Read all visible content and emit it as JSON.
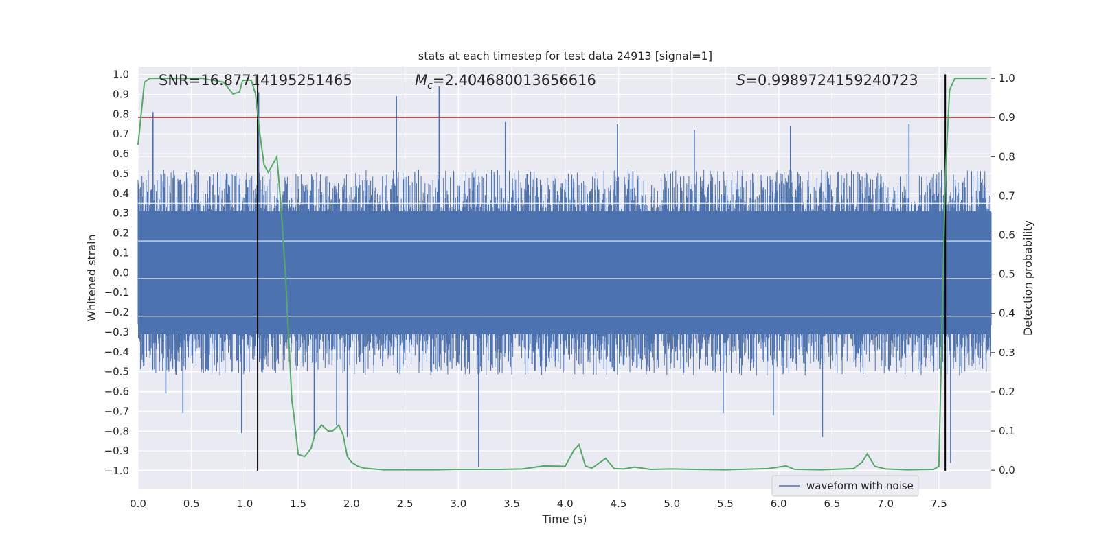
{
  "chart_data": {
    "type": "line",
    "title": "stats at each timestep for test data 24913 [signal=1]",
    "xlabel": "Time (s)",
    "ylabel": "Whitened strain",
    "y2label": "Detection probability",
    "xlim": [
      0.0,
      7.99
    ],
    "ylim": [
      -1.09,
      1.04
    ],
    "y2lim": [
      -0.047,
      1.03
    ],
    "grid": true,
    "x_ticks": [
      "0.0",
      "0.5",
      "1.0",
      "1.5",
      "2.0",
      "2.5",
      "3.0",
      "3.5",
      "4.0",
      "4.5",
      "5.0",
      "5.5",
      "6.0",
      "6.5",
      "7.0",
      "7.5"
    ],
    "y_ticks": [
      "1.0",
      "0.9",
      "0.8",
      "0.7",
      "0.6",
      "0.5",
      "0.4",
      "0.3",
      "0.2",
      "0.1",
      "0.0",
      "-0.1",
      "-0.2",
      "-0.3",
      "-0.4",
      "-0.5",
      "-0.6",
      "-0.7",
      "-0.8",
      "-0.9",
      "-1.0"
    ],
    "y2_ticks": [
      "1.0",
      "0.9",
      "0.8",
      "0.7",
      "0.6",
      "0.5",
      "0.4",
      "0.3",
      "0.2",
      "0.1",
      "0.0"
    ],
    "annotations": {
      "snr": "SNR=16.87714195251465",
      "mc_symbol": "M",
      "mc_subscript": "c",
      "mc_value": "=2.404680013656616",
      "s_symbol": "S",
      "s_value": "=0.9989724159240723"
    },
    "legend": {
      "label": "waveform with noise",
      "position": "lower-right"
    },
    "series": [
      {
        "name": "waveform with noise",
        "color": "#4c72b0",
        "axis": "left",
        "kind": "dense noise",
        "spikes": [
          [
            0.14,
            0.81
          ],
          [
            0.26,
            -0.61
          ],
          [
            0.42,
            -0.71
          ],
          [
            0.97,
            -0.81
          ],
          [
            1.13,
            0.91
          ],
          [
            1.65,
            -0.84
          ],
          [
            1.86,
            -0.77
          ],
          [
            1.96,
            -0.83
          ],
          [
            2.42,
            0.89
          ],
          [
            2.82,
            0.94
          ],
          [
            3.19,
            -0.98
          ],
          [
            3.44,
            0.76
          ],
          [
            4.49,
            0.75
          ],
          [
            5.21,
            0.72
          ],
          [
            5.48,
            -0.71
          ],
          [
            5.95,
            -0.72
          ],
          [
            6.11,
            0.74
          ],
          [
            6.41,
            -0.83
          ],
          [
            7.22,
            0.75
          ],
          [
            7.61,
            -0.96
          ]
        ]
      },
      {
        "name": "",
        "color": "#55a868",
        "axis": "right",
        "x": [
          0.0,
          0.06,
          0.11,
          0.2,
          0.4,
          0.6,
          0.8,
          0.89,
          0.95,
          0.98,
          1.06,
          1.1,
          1.14,
          1.18,
          1.22,
          1.26,
          1.3,
          1.34,
          1.38,
          1.42,
          1.44,
          1.46,
          1.5,
          1.56,
          1.62,
          1.66,
          1.72,
          1.78,
          1.82,
          1.88,
          1.92,
          1.96,
          2.0,
          2.06,
          2.12,
          2.2,
          2.3,
          2.5,
          2.8,
          3.0,
          3.2,
          3.4,
          3.6,
          3.8,
          4.0,
          4.08,
          4.13,
          4.19,
          4.25,
          4.38,
          4.46,
          4.55,
          4.65,
          4.8,
          5.0,
          5.2,
          5.5,
          5.9,
          6.07,
          6.15,
          6.4,
          6.7,
          6.78,
          6.83,
          6.9,
          7.0,
          7.2,
          7.45,
          7.5,
          7.54,
          7.56,
          7.6,
          7.65,
          7.75,
          7.95
        ],
        "values": [
          0.83,
          0.99,
          1.0,
          1.0,
          1.0,
          1.0,
          0.99,
          0.96,
          0.965,
          0.995,
          0.995,
          0.96,
          0.86,
          0.78,
          0.76,
          0.78,
          0.8,
          0.67,
          0.5,
          0.29,
          0.18,
          0.14,
          0.04,
          0.035,
          0.055,
          0.095,
          0.115,
          0.1,
          0.1,
          0.115,
          0.09,
          0.035,
          0.02,
          0.01,
          0.005,
          0.003,
          0.001,
          0.001,
          0.001,
          0.002,
          0.002,
          0.002,
          0.003,
          0.011,
          0.01,
          0.05,
          0.065,
          0.011,
          0.005,
          0.03,
          0.004,
          0.003,
          0.008,
          0.002,
          0.003,
          0.002,
          0.001,
          0.004,
          0.011,
          0.002,
          0.001,
          0.004,
          0.02,
          0.042,
          0.01,
          0.003,
          0.001,
          0.002,
          0.01,
          0.5,
          0.75,
          0.97,
          1.0,
          1.0,
          1.0
        ]
      }
    ],
    "threshold_line": {
      "axis": "right",
      "y": 0.9,
      "color": "#c44e52"
    },
    "vertical_lines": [
      {
        "x": 1.12,
        "y_top": 1.0,
        "y_bottom": -1.0,
        "color": "#000000"
      },
      {
        "x": 7.56,
        "y_top": 1.0,
        "y_bottom": -1.0,
        "color": "#000000"
      }
    ]
  }
}
